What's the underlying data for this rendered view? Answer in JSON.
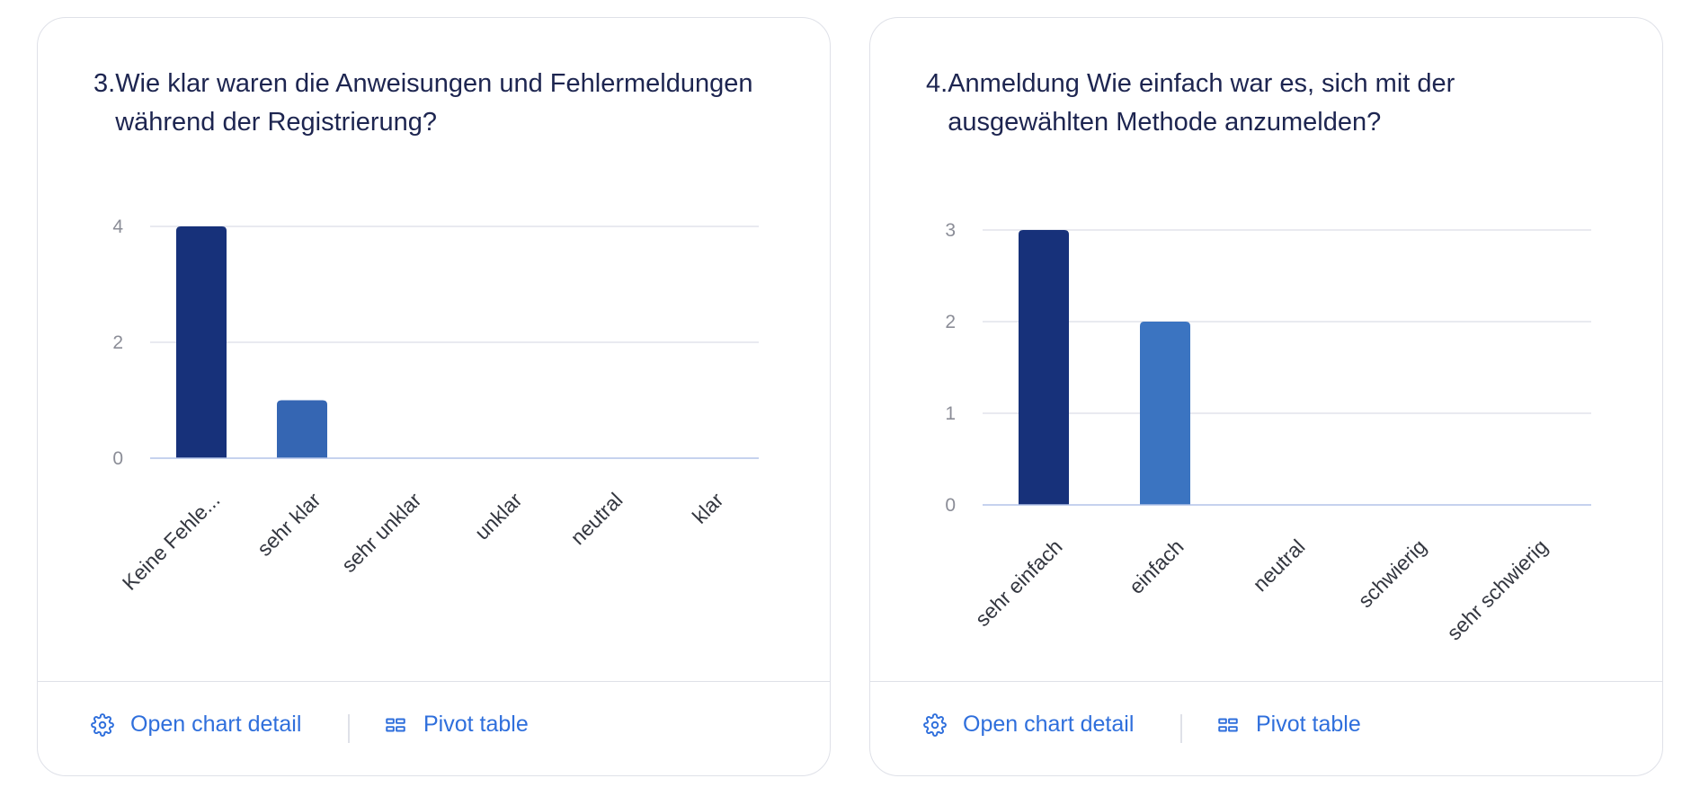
{
  "cards": [
    {
      "number": "3.",
      "question": "Wie klar waren die Anweisungen und Fehlermeldungen während der Registrierung?",
      "footer": {
        "detail_label": "Open chart detail",
        "pivot_label": "Pivot table"
      }
    },
    {
      "number": "4.",
      "question": "Anmeldung Wie einfach war es, sich mit der ausgewählten Methode anzumelden?",
      "footer": {
        "detail_label": "Open chart detail",
        "pivot_label": "Pivot table"
      }
    }
  ],
  "chart_data": [
    {
      "type": "bar",
      "title": "3. Wie klar waren die Anweisungen und Fehlermeldungen während der Registrierung?",
      "categories": [
        "Keine Fehle...",
        "sehr klar",
        "sehr unklar",
        "unklar",
        "neutral",
        "klar"
      ],
      "values": [
        4,
        1,
        0,
        0,
        0,
        0
      ],
      "colors": [
        "#17317a",
        "#3566b3",
        "#3566b3",
        "#3566b3",
        "#3566b3",
        "#3566b3"
      ],
      "yticks": [
        0,
        2,
        4
      ],
      "ylim": [
        0,
        4
      ],
      "grid": true,
      "legend": "none"
    },
    {
      "type": "bar",
      "title": "4. Anmeldung Wie einfach war es, sich mit der ausgewählten Methode anzumelden?",
      "categories": [
        "sehr einfach",
        "einfach",
        "neutral",
        "schwierig",
        "sehr schwierig"
      ],
      "values": [
        3,
        2,
        0,
        0,
        0
      ],
      "colors": [
        "#17317a",
        "#3b74c1",
        "#3b74c1",
        "#3b74c1",
        "#3b74c1"
      ],
      "yticks": [
        0,
        1,
        2,
        3
      ],
      "ylim": [
        0,
        3
      ],
      "grid": true,
      "legend": "none"
    }
  ],
  "icons": {
    "detail": "gear-icon",
    "pivot": "pivot-table-icon"
  },
  "colors": {
    "accent": "#2f6fdc",
    "title": "#1d2550",
    "border": "#dfe1e8"
  }
}
